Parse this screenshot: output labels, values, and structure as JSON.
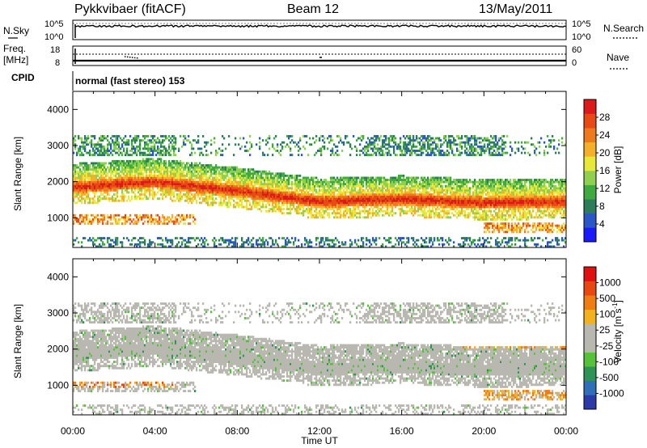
{
  "header": {
    "station": "Pykkvibaer (fitACF)",
    "beam": "Beam 12",
    "date": "13/May/2011"
  },
  "panels": {
    "noise": {
      "left_label": "N.Sky",
      "right_label": "N.Search",
      "left_ticks": [
        "10^5",
        "10^0"
      ],
      "right_ticks": [
        "10^5",
        "10^0"
      ]
    },
    "freq": {
      "left_label_1": "Freq.",
      "left_label_2": "[MHz]",
      "right_label": "Nave",
      "left_ticks": [
        "18",
        "8"
      ],
      "right_ticks": [
        "60",
        "0"
      ]
    },
    "cpid": {
      "label": "CPID",
      "text": "normal (fast stereo) 153"
    }
  },
  "colorbars": {
    "power": {
      "label": "Power [dB]",
      "ticks": [
        "28",
        "24",
        "20",
        "16",
        "12",
        "8",
        "4"
      ],
      "colors": [
        "#1a1aff",
        "#2a56c8",
        "#2e7d5a",
        "#3faa3f",
        "#8fd14f",
        "#e8e838",
        "#f5b02a",
        "#ef7a1c",
        "#e84a14",
        "#dd1a1a"
      ]
    },
    "velocity": {
      "label": "Velocity [m s",
      "label_sup": "-1",
      "label_end": "]",
      "ticks": [
        "1000",
        "500",
        "100",
        "25",
        "-25",
        "-100",
        "-500",
        "-1000"
      ],
      "colors": [
        "#2a3aa8",
        "#2f6fb8",
        "#2e9455",
        "#55c23a",
        "#b8b8b0",
        "#b8b8b0",
        "#f2b21e",
        "#f07d12",
        "#e8480e",
        "#e01010"
      ]
    }
  },
  "chart_data": {
    "type": "heatmap",
    "x": {
      "label": "Time UT",
      "ticks": [
        "00:00",
        "04:00",
        "08:00",
        "12:00",
        "16:00",
        "20:00",
        "00:00"
      ],
      "range_hours": [
        0,
        24
      ]
    },
    "y": {
      "label": "Slant Range [km]",
      "ticks": [
        "1000",
        "2000",
        "3000",
        "4000"
      ],
      "range_km": [
        180,
        4500
      ]
    },
    "power_panel": {
      "quantity": "Power",
      "unit": "dB",
      "range": [
        0,
        30
      ],
      "strong_band_range_km": [
        [
          0,
          1850
        ],
        [
          4,
          2000
        ],
        [
          8,
          1750
        ],
        [
          12,
          1450
        ],
        [
          16,
          1520
        ],
        [
          20,
          1420
        ],
        [
          24,
          1450
        ]
      ]
    },
    "velocity_panel": {
      "quantity": "Velocity",
      "unit": "m s-1",
      "range": [
        -1000,
        1000
      ]
    }
  }
}
